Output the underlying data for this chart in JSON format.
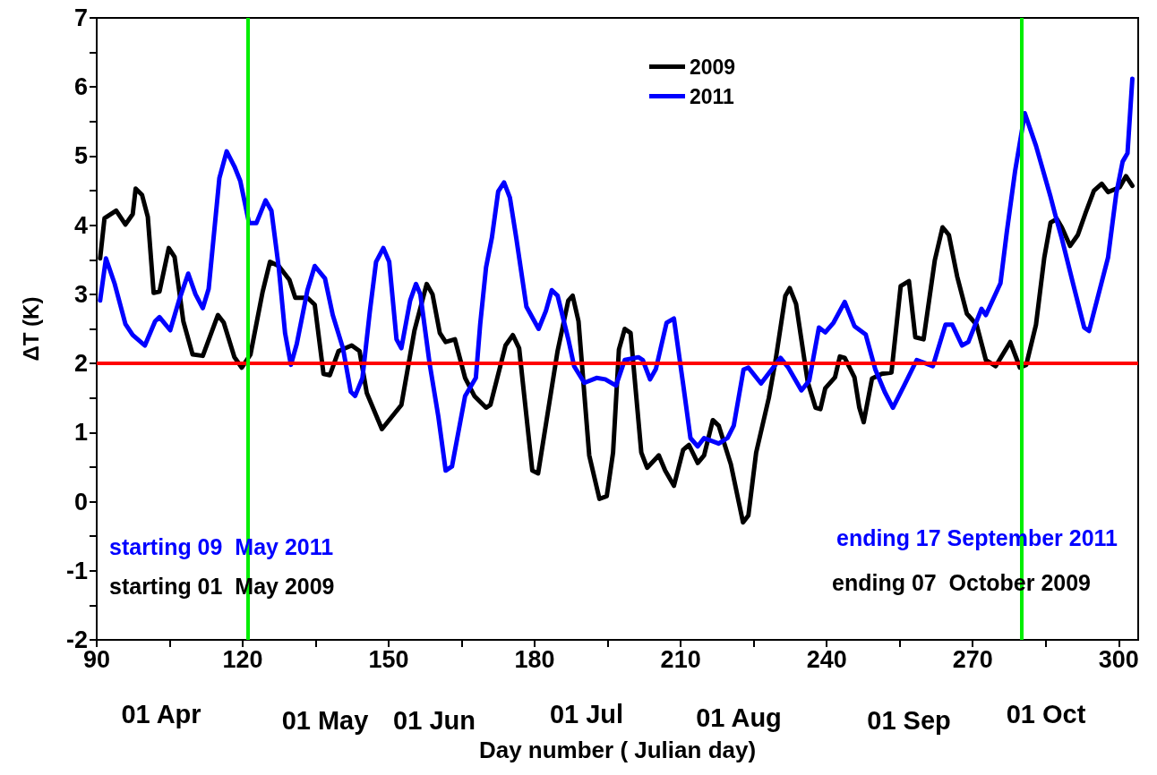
{
  "chart_data": {
    "type": "line",
    "xlabel": "Day number ( Julian day)",
    "ylabel": "ΔT (K)",
    "xlim": [
      90,
      304
    ],
    "xticks": [
      90,
      {
        "value": 105,
        "label": null
      },
      120,
      {
        "value": 135,
        "label": null
      },
      150,
      {
        "value": 165,
        "label": null
      },
      180,
      {
        "value": 195,
        "label": null
      },
      210,
      {
        "value": 225,
        "label": null
      },
      240,
      {
        "value": 255,
        "label": null
      },
      270,
      {
        "value": 285,
        "label": null
      },
      300
    ],
    "ylim": [
      -2,
      7
    ],
    "yticks": [
      -2,
      {
        "value": -1.5,
        "label": null
      },
      -1,
      {
        "value": -0.5,
        "label": null
      },
      0,
      {
        "value": 0.5,
        "label": null
      },
      1,
      {
        "value": 1.5,
        "label": null
      },
      2,
      {
        "value": 2.5,
        "label": null
      },
      3,
      {
        "value": 3.5,
        "label": null
      },
      4,
      {
        "value": 4.5,
        "label": null
      },
      5,
      {
        "value": 5.5,
        "label": null
      },
      6,
      {
        "value": 6.5,
        "label": null
      },
      7
    ],
    "legend": "top",
    "grid": false,
    "line_style": "solid",
    "series": [
      {
        "name": "2009",
        "color": "#000000",
        "x": [
          90.7,
          91.6,
          94.0,
          95.9,
          97.4,
          98.0,
          99.3,
          100.5,
          101.7,
          102.9,
          104.8,
          106.0,
          107.8,
          109.7,
          111.8,
          114.9,
          116.1,
          118.3,
          119.8,
          121.6,
          124.1,
          125.6,
          127.4,
          129.6,
          130.8,
          133.3,
          134.8,
          136.6,
          137.9,
          139.7,
          142.4,
          144.0,
          145.5,
          148.6,
          152.6,
          155.3,
          157.8,
          159.0,
          160.5,
          161.7,
          163.6,
          165.7,
          167.6,
          170.0,
          170.9,
          174.0,
          175.5,
          176.8,
          179.5,
          180.7,
          184.7,
          186.9,
          187.8,
          189.0,
          191.2,
          193.3,
          194.8,
          196.1,
          197.3,
          198.5,
          199.7,
          201.9,
          203.1,
          205.5,
          206.8,
          208.6,
          210.5,
          211.7,
          213.5,
          214.8,
          216.6,
          217.8,
          220.3,
          222.8,
          223.9,
          225.5,
          228.1,
          229.5,
          231.5,
          232.4,
          233.7,
          236.1,
          237.7,
          238.7,
          239.7,
          241.7,
          242.7,
          243.7,
          245.7,
          246.7,
          247.6,
          249.3,
          251.3,
          253.3,
          255.2,
          256.9,
          258.2,
          259.9,
          262.2,
          263.8,
          265.1,
          266.8,
          268.8,
          270.8,
          272.7,
          274.7,
          277.7,
          279.7,
          281.0,
          283.0,
          284.7,
          286.0,
          287.3,
          288.3,
          290.0,
          291.6,
          293.2,
          294.9,
          296.5,
          297.8,
          300.2,
          301.5,
          302.8
        ],
        "values": [
          3.52,
          4.1,
          4.21,
          4.01,
          4.16,
          4.53,
          4.44,
          4.12,
          3.02,
          3.04,
          3.67,
          3.54,
          2.61,
          2.13,
          2.11,
          2.7,
          2.59,
          2.09,
          1.94,
          2.13,
          3.04,
          3.47,
          3.41,
          3.21,
          2.95,
          2.95,
          2.85,
          1.85,
          1.83,
          2.18,
          2.26,
          2.18,
          1.57,
          1.05,
          1.4,
          2.48,
          3.15,
          3.0,
          2.44,
          2.31,
          2.35,
          1.79,
          1.53,
          1.36,
          1.4,
          2.26,
          2.41,
          2.22,
          0.45,
          0.41,
          2.18,
          2.91,
          2.98,
          2.61,
          0.67,
          0.04,
          0.08,
          0.71,
          2.2,
          2.5,
          2.44,
          0.71,
          0.49,
          0.67,
          0.45,
          0.23,
          0.75,
          0.82,
          0.56,
          0.67,
          1.18,
          1.1,
          0.54,
          -0.3,
          -0.2,
          0.71,
          1.5,
          2.05,
          2.98,
          3.09,
          2.86,
          1.73,
          1.36,
          1.34,
          1.64,
          1.8,
          2.1,
          2.08,
          1.8,
          1.36,
          1.15,
          1.78,
          1.85,
          1.87,
          3.12,
          3.19,
          2.38,
          2.35,
          3.49,
          3.97,
          3.86,
          3.26,
          2.72,
          2.56,
          2.05,
          1.96,
          2.31,
          1.94,
          1.98,
          2.56,
          3.53,
          4.04,
          4.09,
          3.97,
          3.7,
          3.86,
          4.18,
          4.5,
          4.6,
          4.48,
          4.55,
          4.71,
          4.57
        ]
      },
      {
        "name": "2011",
        "color": "#0000ff",
        "x": [
          90.7,
          91.9,
          93.7,
          95.9,
          97.4,
          99.9,
          102.0,
          102.9,
          105.1,
          106.9,
          108.8,
          110.3,
          111.8,
          113.0,
          115.2,
          116.7,
          118.3,
          119.5,
          121.3,
          122.8,
          124.7,
          125.9,
          127.4,
          128.7,
          129.9,
          131.1,
          133.3,
          134.8,
          136.9,
          138.5,
          140.6,
          142.2,
          143.1,
          144.6,
          146.1,
          147.4,
          148.9,
          150.1,
          151.6,
          152.6,
          154.4,
          155.6,
          156.5,
          158.4,
          160.2,
          161.7,
          163.0,
          165.7,
          167.9,
          168.8,
          170.0,
          171.2,
          172.5,
          173.7,
          174.9,
          176.2,
          178.3,
          180.8,
          182.3,
          183.5,
          184.7,
          186.9,
          188.1,
          190.2,
          192.7,
          194.5,
          196.7,
          198.5,
          201.3,
          202.2,
          203.7,
          204.9,
          207.1,
          208.6,
          210.5,
          212.0,
          213.5,
          214.8,
          217.8,
          219.6,
          220.9,
          222.9,
          223.9,
          226.5,
          230.5,
          232.1,
          234.8,
          236.4,
          238.4,
          239.7,
          241.4,
          243.7,
          245.7,
          248.0,
          250.0,
          251.9,
          253.6,
          255.9,
          258.5,
          261.8,
          264.4,
          265.8,
          267.8,
          269.1,
          271.8,
          272.7,
          275.7,
          277.0,
          278.7,
          280.7,
          283.0,
          286.0,
          287.0,
          288.3,
          290.6,
          292.9,
          293.9,
          297.8,
          299.5,
          300.8,
          301.8,
          302.8
        ],
        "values": [
          2.91,
          3.52,
          3.15,
          2.57,
          2.41,
          2.26,
          2.61,
          2.67,
          2.48,
          2.91,
          3.3,
          3.0,
          2.8,
          3.08,
          4.68,
          5.07,
          4.85,
          4.64,
          4.03,
          4.03,
          4.36,
          4.21,
          3.39,
          2.44,
          1.98,
          2.28,
          3.06,
          3.41,
          3.23,
          2.7,
          2.22,
          1.59,
          1.53,
          1.79,
          2.74,
          3.47,
          3.67,
          3.47,
          2.35,
          2.22,
          2.91,
          3.15,
          3.0,
          2.0,
          1.23,
          0.45,
          0.51,
          1.53,
          1.79,
          2.57,
          3.39,
          3.82,
          4.49,
          4.62,
          4.4,
          3.82,
          2.82,
          2.5,
          2.76,
          3.06,
          2.98,
          2.35,
          1.96,
          1.72,
          1.79,
          1.77,
          1.68,
          2.05,
          2.09,
          2.05,
          1.77,
          1.92,
          2.59,
          2.65,
          1.7,
          0.92,
          0.8,
          0.92,
          0.84,
          0.92,
          1.1,
          1.91,
          1.94,
          1.71,
          2.08,
          1.94,
          1.61,
          1.75,
          2.52,
          2.45,
          2.59,
          2.89,
          2.54,
          2.42,
          1.91,
          1.59,
          1.36,
          1.68,
          2.05,
          1.96,
          2.56,
          2.56,
          2.26,
          2.31,
          2.79,
          2.7,
          3.16,
          3.9,
          4.78,
          5.62,
          5.15,
          4.41,
          4.14,
          3.81,
          3.16,
          2.52,
          2.47,
          3.53,
          4.46,
          4.92,
          5.04,
          6.12
        ]
      }
    ],
    "ref_lines": [
      {
        "axis": "y",
        "value": 2,
        "color": "#ff0000"
      },
      {
        "axis": "x",
        "value": 121,
        "color": "#00ee00"
      },
      {
        "axis": "x",
        "value": 280,
        "color": "#00ee00"
      }
    ],
    "annotations": [
      "starting 09  May 2011",
      "starting 01  May 2009",
      "ending 17 September 2011",
      "ending 07  October 2009",
      "01 Apr",
      "01 May",
      "01 Jun",
      "01 Jul",
      "01 Aug",
      "01 Sep",
      "01 Oct"
    ]
  }
}
